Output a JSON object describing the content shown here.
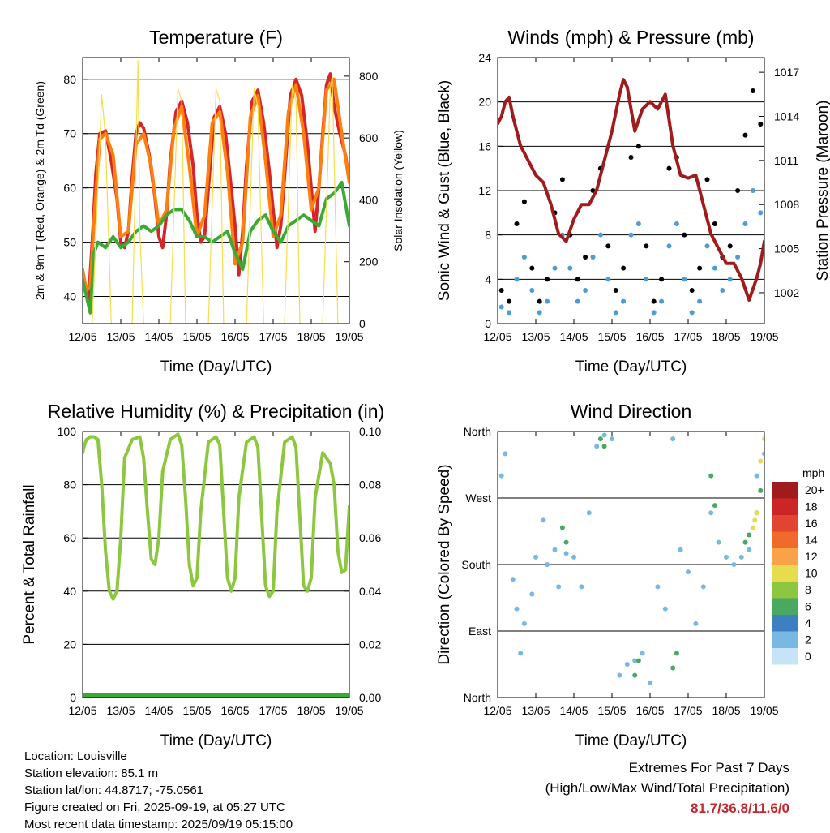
{
  "chart_data": [
    {
      "type": "line",
      "title": "Temperature (F)",
      "xlabel": "Time (Day/UTC)",
      "ylabel": "2m & 9m T (Red, Orange) & 2m Td (Green)",
      "ylabel_right": "Solar Insolation (Yellow)",
      "x_ticks": [
        "12/05",
        "13/05",
        "14/05",
        "15/05",
        "16/05",
        "17/05",
        "18/05",
        "19/05"
      ],
      "xlim": [
        0,
        7
      ],
      "ylim": [
        35,
        84
      ],
      "y_ticks": [
        40,
        50,
        60,
        70,
        80
      ],
      "ylim_right": [
        0,
        860
      ],
      "y_ticks_right": [
        0,
        200,
        400,
        600,
        800
      ],
      "series": [
        {
          "color": "#d62728",
          "x": [
            0,
            0.08,
            0.15,
            0.25,
            0.35,
            0.45,
            0.6,
            0.75,
            0.9,
            1.0,
            1.1,
            1.2,
            1.3,
            1.4,
            1.5,
            1.6,
            1.75,
            1.9,
            2.0,
            2.1,
            2.2,
            2.3,
            2.45,
            2.6,
            2.75,
            2.9,
            3.0,
            3.1,
            3.2,
            3.3,
            3.45,
            3.6,
            3.75,
            3.9,
            4.0,
            4.1,
            4.2,
            4.3,
            4.45,
            4.6,
            4.75,
            4.9,
            5.0,
            5.1,
            5.2,
            5.3,
            5.45,
            5.6,
            5.75,
            5.9,
            6.0,
            6.1,
            6.2,
            6.3,
            6.4,
            6.5,
            6.6,
            6.75,
            6.9,
            7.0
          ],
          "values": [
            44,
            42,
            39,
            50,
            63,
            70,
            70.5,
            65,
            58,
            50,
            49,
            52,
            62,
            70,
            72,
            71,
            66,
            58,
            51,
            49,
            55,
            65,
            74,
            76,
            72,
            64,
            55,
            50,
            51,
            60,
            73,
            75,
            70,
            60,
            53,
            44,
            52,
            64,
            76,
            78,
            72,
            63,
            56,
            49,
            53,
            62,
            77,
            80,
            77,
            68,
            60,
            52,
            60,
            70,
            79,
            81,
            75,
            70,
            66,
            61
          ]
        },
        {
          "color": "#ff7f0e",
          "x": [
            0,
            0.1,
            0.2,
            0.3,
            0.45,
            0.6,
            0.8,
            1.0,
            1.2,
            1.4,
            1.6,
            1.8,
            2.0,
            2.2,
            2.4,
            2.6,
            2.8,
            3.0,
            3.2,
            3.4,
            3.6,
            3.8,
            4.0,
            4.2,
            4.4,
            4.6,
            4.8,
            5.0,
            5.2,
            5.4,
            5.6,
            5.8,
            6.0,
            6.2,
            6.4,
            6.6,
            6.8,
            7.0
          ],
          "values": [
            45,
            41,
            42,
            54,
            69,
            70,
            66,
            51,
            52,
            68,
            70,
            64,
            53,
            56,
            71,
            75,
            64,
            51,
            55,
            72,
            74,
            63,
            46,
            50,
            73,
            77,
            65,
            51,
            55,
            74,
            79,
            70,
            56,
            60,
            78,
            80,
            70,
            61
          ]
        },
        {
          "color": "#3aaa35",
          "x": [
            0,
            0.1,
            0.2,
            0.3,
            0.4,
            0.6,
            0.8,
            1.0,
            1.2,
            1.4,
            1.6,
            1.8,
            2.0,
            2.2,
            2.4,
            2.6,
            2.8,
            3.0,
            3.2,
            3.4,
            3.6,
            3.8,
            4.0,
            4.2,
            4.4,
            4.6,
            4.8,
            5.0,
            5.2,
            5.4,
            5.6,
            5.8,
            6.0,
            6.2,
            6.4,
            6.6,
            6.8,
            7.0
          ],
          "values": [
            43,
            40,
            37,
            48,
            50,
            49,
            51,
            49,
            50,
            52,
            53,
            52,
            53,
            55,
            56,
            56,
            54,
            51,
            51,
            50,
            51,
            52,
            48,
            45,
            52,
            54,
            55,
            52,
            50,
            53,
            54,
            55,
            54,
            53,
            58,
            59,
            61,
            53
          ]
        },
        {
          "color": "#f7dc4d",
          "axis": "right",
          "x": [
            0,
            0.25,
            0.5,
            0.6,
            0.75,
            1.0,
            1.3,
            1.45,
            1.5,
            1.6,
            1.7,
            2.0,
            2.3,
            2.5,
            2.6,
            2.7,
            3.0,
            3.3,
            3.5,
            3.6,
            3.7,
            4.0,
            4.3,
            4.5,
            4.6,
            4.75,
            5.0,
            5.3,
            5.5,
            5.6,
            5.7,
            6.0,
            6.3,
            6.5,
            6.55,
            6.7,
            7.0
          ],
          "values": [
            0,
            0,
            740,
            600,
            0,
            0,
            0,
            850,
            300,
            0,
            0,
            0,
            0,
            760,
            720,
            0,
            0,
            0,
            760,
            720,
            0,
            0,
            0,
            760,
            700,
            0,
            0,
            0,
            770,
            720,
            0,
            0,
            0,
            760,
            800,
            0,
            0
          ]
        }
      ]
    },
    {
      "type": "scatter",
      "title": "Winds (mph) & Pressure (mb)",
      "xlabel": "Time (Day/UTC)",
      "ylabel": "Sonic Wind & Gust (Blue, Black)",
      "ylabel_right": "Station Pressure (Maroon)",
      "x_ticks": [
        "12/05",
        "13/05",
        "14/05",
        "15/05",
        "16/05",
        "17/05",
        "18/05",
        "19/05"
      ],
      "xlim": [
        0,
        7
      ],
      "ylim": [
        0,
        24
      ],
      "y_ticks": [
        0,
        4,
        8,
        12,
        16,
        20,
        24
      ],
      "ylim_right": [
        999.9,
        1018
      ],
      "y_ticks_right": [
        1002,
        1005,
        1008,
        1011,
        1014,
        1017
      ],
      "series": [
        {
          "color": "#000000",
          "x": [
            0.1,
            0.3,
            0.5,
            0.7,
            0.9,
            1.1,
            1.3,
            1.5,
            1.7,
            1.9,
            2.1,
            2.3,
            2.5,
            2.7,
            2.9,
            3.1,
            3.3,
            3.5,
            3.7,
            3.9,
            4.1,
            4.3,
            4.5,
            4.7,
            4.9,
            5.1,
            5.3,
            5.5,
            5.7,
            5.9,
            6.1,
            6.3,
            6.5,
            6.7,
            6.9
          ],
          "values": [
            3,
            2,
            9,
            11,
            5,
            2,
            4,
            10,
            13,
            8,
            4,
            6,
            12,
            14,
            7,
            3,
            5,
            15,
            16,
            7,
            2,
            4,
            14,
            15,
            8,
            3,
            5,
            13,
            9,
            6,
            7,
            12,
            17,
            21,
            18
          ]
        },
        {
          "color": "#4f9bd4",
          "x": [
            0.1,
            0.3,
            0.5,
            0.7,
            0.9,
            1.1,
            1.3,
            1.5,
            1.7,
            1.9,
            2.1,
            2.3,
            2.5,
            2.7,
            2.9,
            3.1,
            3.3,
            3.5,
            3.7,
            3.9,
            4.1,
            4.3,
            4.5,
            4.7,
            4.9,
            5.1,
            5.3,
            5.5,
            5.7,
            5.9,
            6.1,
            6.3,
            6.5,
            6.7,
            6.9
          ],
          "values": [
            1.5,
            1,
            4,
            6,
            3,
            1,
            2,
            5,
            8,
            5,
            2,
            3,
            6,
            8,
            4,
            1,
            2,
            8,
            9,
            4,
            1,
            2,
            7,
            9,
            4,
            1,
            2,
            7,
            5,
            3,
            4,
            6,
            9,
            12,
            10
          ]
        },
        {
          "color": "#a01c1c",
          "axis": "right",
          "x": [
            0,
            0.1,
            0.2,
            0.3,
            0.4,
            0.6,
            0.8,
            1.0,
            1.2,
            1.4,
            1.6,
            1.8,
            2.0,
            2.2,
            2.4,
            2.6,
            2.8,
            3.0,
            3.2,
            3.3,
            3.4,
            3.6,
            3.8,
            4.0,
            4.2,
            4.4,
            4.6,
            4.8,
            5.0,
            5.2,
            5.4,
            5.6,
            5.8,
            6.0,
            6.2,
            6.4,
            6.6,
            6.8,
            6.9,
            7.0
          ],
          "values": [
            1013.5,
            1014,
            1015,
            1015.3,
            1014,
            1012,
            1011,
            1010,
            1009.5,
            1008,
            1006,
            1005.5,
            1007,
            1008,
            1008,
            1009,
            1011,
            1013,
            1015.5,
            1016.5,
            1016,
            1013,
            1014.5,
            1015,
            1014.5,
            1015.5,
            1012,
            1010,
            1009.8,
            1010,
            1008,
            1006,
            1005,
            1004,
            1004,
            1003,
            1001.5,
            1003,
            1004,
            1005.5
          ]
        }
      ]
    },
    {
      "type": "line",
      "title": "Relative Humidity (%) & Precipitation (in)",
      "xlabel": "Time (Day/UTC)",
      "ylabel": "Percent & Total Rainfall",
      "x_ticks": [
        "12/05",
        "13/05",
        "14/05",
        "15/05",
        "16/05",
        "17/05",
        "18/05",
        "19/05"
      ],
      "xlim": [
        0,
        7
      ],
      "ylim": [
        0,
        100
      ],
      "y_ticks": [
        0,
        20,
        40,
        60,
        80,
        100
      ],
      "ylim_right": [
        0,
        0.1
      ],
      "y_ticks_right": [
        "0.00",
        "0.02",
        "0.04",
        "0.06",
        "0.08",
        "0.10"
      ],
      "series": [
        {
          "color": "#8dc63f",
          "x": [
            0,
            0.05,
            0.1,
            0.2,
            0.3,
            0.4,
            0.5,
            0.6,
            0.7,
            0.8,
            0.9,
            1.0,
            1.1,
            1.3,
            1.5,
            1.6,
            1.7,
            1.8,
            1.9,
            2.0,
            2.1,
            2.3,
            2.5,
            2.6,
            2.7,
            2.8,
            2.9,
            3.0,
            3.1,
            3.3,
            3.5,
            3.6,
            3.7,
            3.8,
            3.9,
            4.0,
            4.1,
            4.3,
            4.5,
            4.6,
            4.7,
            4.8,
            4.9,
            5.0,
            5.1,
            5.3,
            5.5,
            5.6,
            5.7,
            5.8,
            5.9,
            6.0,
            6.1,
            6.3,
            6.5,
            6.6,
            6.7,
            6.8,
            6.9,
            7.0
          ],
          "values": [
            92,
            95,
            97,
            98,
            98,
            97,
            80,
            55,
            40,
            37,
            40,
            60,
            90,
            97,
            98,
            90,
            70,
            52,
            50,
            60,
            85,
            97,
            99,
            95,
            75,
            50,
            42,
            45,
            70,
            96,
            98,
            95,
            70,
            45,
            40,
            45,
            75,
            96,
            98,
            94,
            68,
            42,
            38,
            40,
            70,
            96,
            98,
            94,
            68,
            42,
            40,
            45,
            75,
            92,
            88,
            80,
            55,
            47,
            48,
            72
          ]
        },
        {
          "color": "#3aaa35",
          "x": [
            0,
            7
          ],
          "values": [
            0,
            0
          ]
        }
      ]
    },
    {
      "type": "scatter",
      "title": "Wind Direction",
      "xlabel": "Time (Day/UTC)",
      "ylabel": "Direction (Colored By Speed)",
      "x_ticks": [
        "12/05",
        "13/05",
        "14/05",
        "15/05",
        "16/05",
        "17/05",
        "18/05",
        "19/05"
      ],
      "xlim": [
        0,
        7
      ],
      "ylim": [
        0,
        360
      ],
      "y_ticks": [
        "North",
        "East",
        "South",
        "West",
        "North"
      ],
      "legend_title": "mph",
      "legend_labels": [
        "20+",
        "18",
        "16",
        "14",
        "12",
        "10",
        "8",
        "6",
        "4",
        "2",
        "0"
      ],
      "legend_colors": [
        "#a01c1c",
        "#cc2528",
        "#e2452f",
        "#f06a2a",
        "#f9a247",
        "#e6dc4e",
        "#8dc63f",
        "#4aa862",
        "#3d7fc1",
        "#79b8e3",
        "#c6e3f7"
      ],
      "series": [
        {
          "color": "#79b8e3",
          "x": [
            0.1,
            0.2,
            0.4,
            0.5,
            0.6,
            0.7,
            0.9,
            1.0,
            1.2,
            1.3,
            1.5,
            1.6,
            1.8,
            2.0,
            2.2,
            2.4,
            2.6,
            2.8,
            3.0,
            3.2,
            3.4,
            3.6,
            3.8,
            4.0,
            4.2,
            4.4,
            4.6,
            4.8,
            5.0,
            5.2,
            5.4,
            5.6,
            5.8,
            6.0,
            6.2,
            6.4,
            6.6,
            6.8,
            7.0
          ],
          "values": [
            300,
            330,
            160,
            120,
            60,
            100,
            140,
            190,
            240,
            180,
            200,
            150,
            195,
            190,
            150,
            250,
            340,
            355,
            350,
            30,
            45,
            50,
            60,
            20,
            150,
            120,
            350,
            200,
            170,
            100,
            150,
            250,
            210,
            190,
            180,
            190,
            200,
            300,
            330
          ]
        },
        {
          "color": "#4aa862",
          "x": [
            1.7,
            1.8,
            2.7,
            2.8,
            3.6,
            3.7,
            4.6,
            4.7,
            5.6,
            5.7,
            6.5,
            6.6,
            6.8,
            6.9
          ],
          "values": [
            230,
            210,
            350,
            340,
            30,
            50,
            40,
            60,
            300,
            260,
            210,
            220,
            250,
            280
          ]
        },
        {
          "color": "#e6dc4e",
          "x": [
            6.7,
            6.75,
            6.8,
            6.9,
            7.0
          ],
          "values": [
            230,
            240,
            250,
            320,
            350
          ]
        }
      ]
    }
  ],
  "info": {
    "location": "Location: Louisville",
    "elevation": "Station elevation: 85.1 m",
    "latlon": "Station lat/lon: 44.8717; -75.0561",
    "created": "Figure created on Fri, 2025-09-19, at 05:27 UTC",
    "recent": "Most recent data timestamp: 2025/09/19 05:15:00"
  },
  "extremes": {
    "heading": "Extremes For Past 7 Days",
    "sub": "(High/Low/Max Wind/Total Precipitation)",
    "values": "81.7/36.8/11.6/0"
  }
}
